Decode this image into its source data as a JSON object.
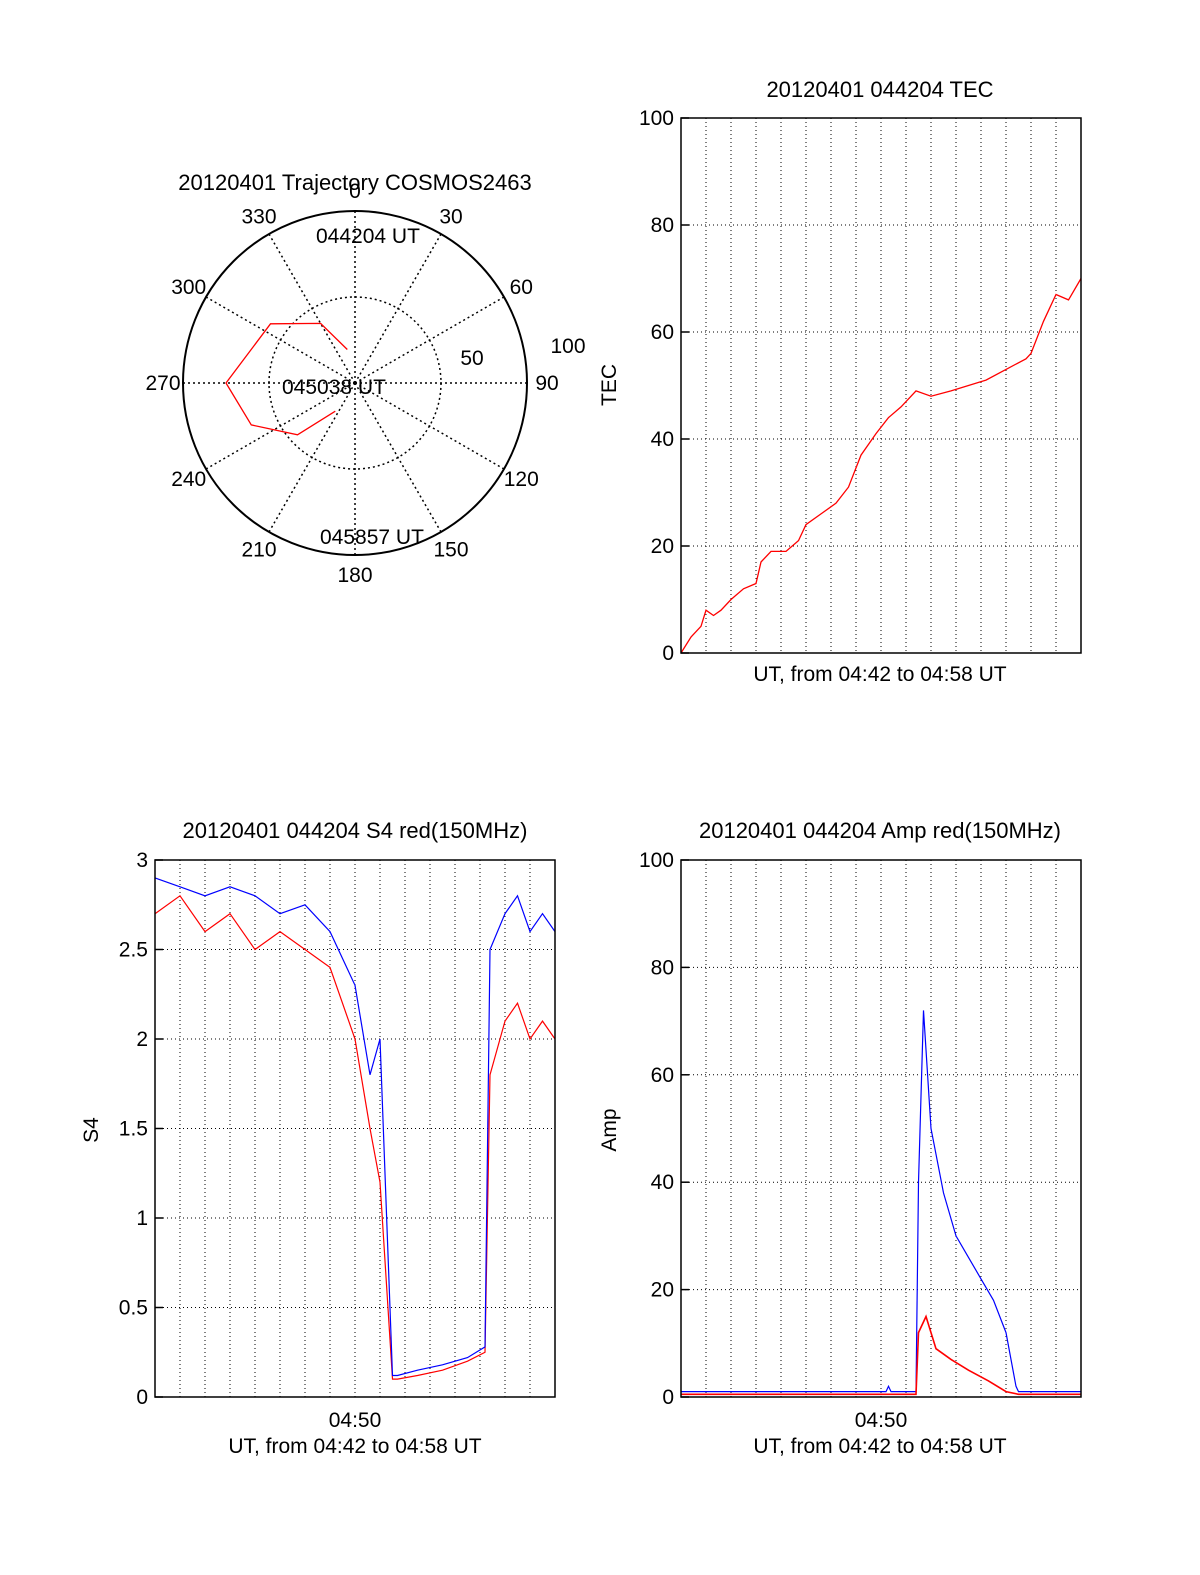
{
  "colors": {
    "red": "#ff0000",
    "blue": "#0000ff",
    "axis": "#000000",
    "grid": "#000000",
    "background": "#ffffff"
  },
  "chart_data": [
    {
      "type": "polar",
      "title": "20120401 Trajectory COSMOS2463",
      "angle_labels": [
        "0",
        "30",
        "60",
        "90",
        "120",
        "150",
        "180",
        "210",
        "240",
        "270",
        "300",
        "330"
      ],
      "radial_ticks": [
        50,
        100
      ],
      "radial_tick_labels": [
        "50",
        "100"
      ],
      "rlim": [
        0,
        100
      ],
      "grid": true,
      "track": {
        "color": "#ff0000",
        "points_az_el": [
          [
            347,
            20
          ],
          [
            330,
            40
          ],
          [
            305,
            60
          ],
          [
            270,
            75
          ],
          [
            248,
            65
          ],
          [
            228,
            45
          ],
          [
            215,
            20
          ]
        ]
      },
      "annotations": {
        "start": "044204 UT",
        "mid": "045038 UT",
        "end": "045857 UT"
      }
    },
    {
      "type": "line",
      "title": "20120401 044204 TEC",
      "ylabel": "TEC",
      "xlabel": "UT, from 04:42 to 04:58 UT",
      "ylim": [
        0,
        100
      ],
      "yticks": [
        0,
        20,
        40,
        60,
        80,
        100
      ],
      "ytick_labels": [
        "0",
        "20",
        "40",
        "60",
        "80",
        "100"
      ],
      "xlim": [
        0,
        16
      ],
      "grid": true,
      "series": [
        {
          "color": "#ff0000",
          "x": [
            0,
            0.4,
            0.8,
            1.0,
            1.3,
            1.6,
            2.0,
            2.5,
            3.0,
            3.2,
            3.6,
            4.2,
            4.7,
            5.0,
            5.6,
            6.2,
            6.7,
            7.2,
            7.8,
            8.3,
            8.8,
            9.4,
            10.0,
            10.8,
            11.5,
            12.2,
            13.0,
            13.8,
            14.0,
            14.5,
            15.0,
            15.5,
            16.0
          ],
          "y": [
            0,
            3,
            5,
            8,
            7,
            8,
            10,
            12,
            13,
            17,
            19,
            19,
            21,
            24,
            26,
            28,
            31,
            37,
            41,
            44,
            46,
            49,
            48,
            49,
            50,
            51,
            53,
            55,
            56,
            62,
            67,
            66,
            70
          ]
        }
      ]
    },
    {
      "type": "line",
      "title": "20120401 044204 S4 red(150MHz)",
      "ylabel": "S4",
      "xlabel": "UT, from 04:42 to 04:58 UT",
      "ylim": [
        0,
        3
      ],
      "yticks": [
        0,
        0.5,
        1,
        1.5,
        2,
        2.5,
        3
      ],
      "ytick_labels": [
        "0",
        "0.5",
        "1",
        "1.5",
        "2",
        "2.5",
        "3"
      ],
      "xlim": [
        0,
        16
      ],
      "xtick_value": 8,
      "xtick_label": "04:50",
      "grid": true,
      "series": [
        {
          "color": "#ff0000",
          "x": [
            0,
            1.0,
            2.0,
            3.0,
            4.0,
            5.0,
            6.0,
            7.0,
            8.0,
            8.6,
            9.0,
            9.5,
            9.7,
            10.5,
            11.5,
            12.5,
            13.2,
            13.4,
            14.0,
            14.5,
            15.0,
            15.5,
            16.0
          ],
          "y": [
            2.7,
            2.8,
            2.6,
            2.7,
            2.5,
            2.6,
            2.5,
            2.4,
            2.0,
            1.5,
            1.2,
            0.1,
            0.1,
            0.12,
            0.15,
            0.2,
            0.25,
            1.8,
            2.1,
            2.2,
            2.0,
            2.1,
            2.0
          ]
        },
        {
          "color": "#0000ff",
          "x": [
            0,
            1.0,
            2.0,
            3.0,
            4.0,
            5.0,
            6.0,
            7.0,
            8.0,
            8.6,
            9.0,
            9.5,
            9.7,
            10.5,
            11.5,
            12.5,
            13.2,
            13.4,
            14.0,
            14.5,
            15.0,
            15.5,
            16.0
          ],
          "y": [
            2.9,
            2.85,
            2.8,
            2.85,
            2.8,
            2.7,
            2.75,
            2.6,
            2.3,
            1.8,
            2.0,
            0.12,
            0.12,
            0.15,
            0.18,
            0.22,
            0.28,
            2.5,
            2.7,
            2.8,
            2.6,
            2.7,
            2.6
          ]
        }
      ]
    },
    {
      "type": "line",
      "title": "20120401 044204 Amp red(150MHz)",
      "ylabel": "Amp",
      "xlabel": "UT, from 04:42 to 04:58 UT",
      "ylim": [
        0,
        100
      ],
      "yticks": [
        0,
        20,
        40,
        60,
        80,
        100
      ],
      "ytick_labels": [
        "0",
        "20",
        "40",
        "60",
        "80",
        "100"
      ],
      "xlim": [
        0,
        16
      ],
      "xtick_value": 8,
      "xtick_label": "04:50",
      "grid": true,
      "series": [
        {
          "color": "#ff0000",
          "x": [
            0,
            9.4,
            9.5,
            9.8,
            10.2,
            10.8,
            11.5,
            12.3,
            13.0,
            13.5,
            16.0
          ],
          "y": [
            0.5,
            0.5,
            12,
            15,
            9,
            7,
            5,
            3,
            1,
            0.5,
            0.5
          ]
        },
        {
          "color": "#0000ff",
          "x": [
            0,
            8.2,
            8.3,
            8.4,
            9.4,
            9.5,
            9.7,
            10.0,
            10.5,
            11.0,
            11.5,
            12.0,
            12.5,
            13.0,
            13.4,
            13.5,
            16.0
          ],
          "y": [
            1,
            1,
            2,
            1,
            1,
            40,
            72,
            50,
            38,
            30,
            26,
            22,
            18,
            12,
            2,
            1,
            1
          ]
        }
      ]
    }
  ]
}
